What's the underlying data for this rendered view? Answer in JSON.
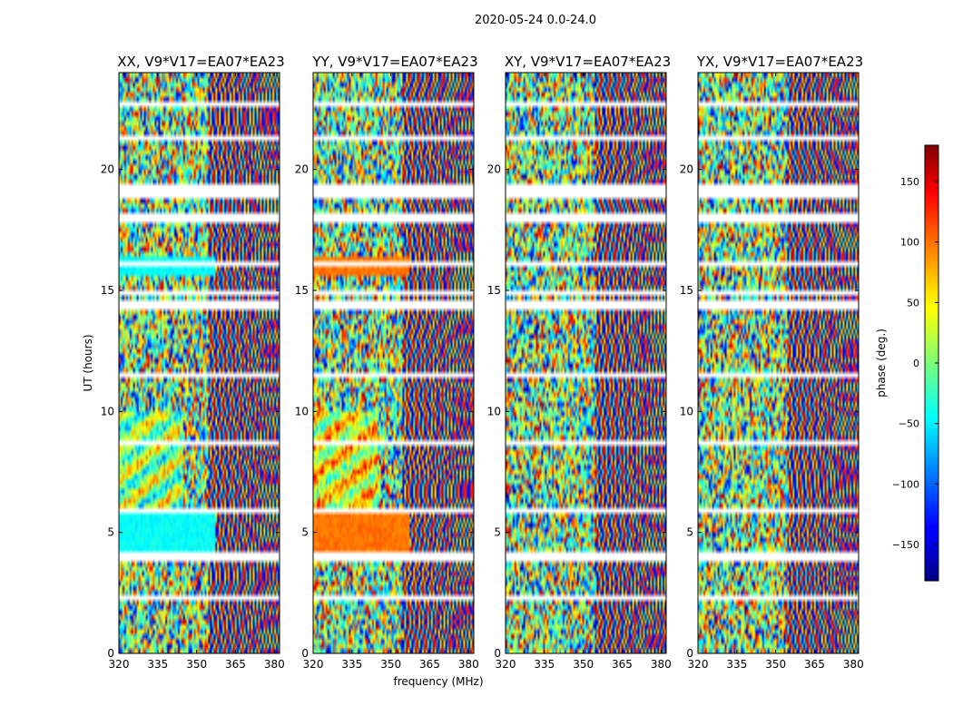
{
  "chart_data": {
    "type": "heatmap",
    "suptitle": "2020-05-24 0.0-24.0",
    "xlabel": "frequency (MHz)",
    "ylabel": "UT (hours)",
    "x_range_mhz": [
      320,
      382
    ],
    "y_range_hours": [
      0,
      24
    ],
    "x_ticks": [
      "320",
      "335",
      "350",
      "365",
      "380"
    ],
    "y_ticks": [
      "0",
      "5",
      "10",
      "15",
      "20"
    ],
    "colormap": "jet",
    "colorbar": {
      "label": "phase (deg.)",
      "range": [
        -180,
        180
      ],
      "ticks": [
        "150",
        "100",
        "50",
        "0",
        "−50",
        "−100",
        "−150"
      ],
      "tick_values": [
        150,
        100,
        50,
        0,
        -50,
        -100,
        -150
      ]
    },
    "panels": [
      {
        "title": "XX, V9*V17=EA07*EA23",
        "pol": "XX"
      },
      {
        "title": "YY, V9*V17=EA07*EA23",
        "pol": "YY"
      },
      {
        "title": "XY, V9*V17=EA07*EA23",
        "pol": "XY"
      },
      {
        "title": "YX, V9*V17=EA07*EA23",
        "pol": "YX"
      }
    ]
  }
}
